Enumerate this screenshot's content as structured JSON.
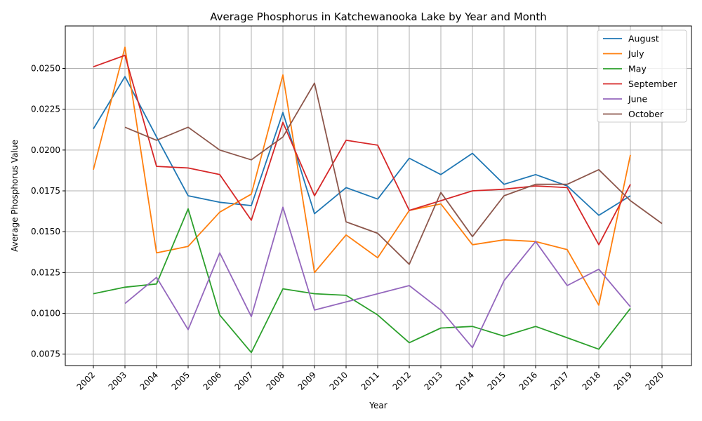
{
  "chart_data": {
    "type": "line",
    "title": "Average Phosphorus in Katchewanooka Lake by Year and Month",
    "xlabel": "Year",
    "ylabel": "Average Phosphorus Value",
    "x": [
      "2002",
      "2003",
      "2004",
      "2005",
      "2006",
      "2007",
      "2008",
      "2009",
      "2010",
      "2011",
      "2012",
      "2013",
      "2014",
      "2015",
      "2016",
      "2017",
      "2018",
      "2019",
      "2020"
    ],
    "ylim": [
      0.0068,
      0.0276
    ],
    "yticks": [
      "0.0075",
      "0.0100",
      "0.0125",
      "0.0150",
      "0.0175",
      "0.0200",
      "0.0225",
      "0.0250"
    ],
    "grid": true,
    "legend_position": "top-right",
    "series": [
      {
        "name": "August",
        "color": "#1f77b4",
        "values": [
          0.0213,
          0.0245,
          0.0208,
          0.0172,
          0.0168,
          0.0166,
          0.0223,
          0.0161,
          0.0177,
          0.017,
          0.0195,
          0.0185,
          0.0198,
          0.0179,
          0.0185,
          0.0178,
          0.016,
          0.0172,
          null
        ]
      },
      {
        "name": "July",
        "color": "#ff7f0e",
        "values": [
          0.0188,
          0.0263,
          0.0137,
          0.0141,
          0.0162,
          0.0173,
          0.0246,
          0.0125,
          0.0148,
          0.0134,
          0.0163,
          0.0167,
          0.0142,
          0.0145,
          0.0144,
          0.0139,
          0.0105,
          0.0197,
          null
        ]
      },
      {
        "name": "May",
        "color": "#2ca02c",
        "values": [
          0.0112,
          0.0116,
          0.0118,
          0.0164,
          0.0099,
          0.0076,
          0.0115,
          0.0112,
          0.0111,
          0.0099,
          0.0082,
          0.0091,
          0.0092,
          0.0086,
          0.0092,
          0.0085,
          0.0078,
          0.0103,
          null
        ]
      },
      {
        "name": "September",
        "color": "#d62728",
        "values": [
          0.0251,
          0.0258,
          0.019,
          0.0189,
          0.0185,
          0.0157,
          0.0217,
          0.0172,
          0.0206,
          0.0203,
          0.0163,
          0.0169,
          0.0175,
          0.0176,
          0.0178,
          0.0177,
          0.0142,
          0.0179,
          null
        ]
      },
      {
        "name": "June",
        "color": "#9467bd",
        "values": [
          null,
          0.0106,
          0.0122,
          0.009,
          0.0137,
          0.0098,
          0.0165,
          0.0102,
          0.0107,
          0.0112,
          0.0117,
          0.0102,
          0.0079,
          0.012,
          0.0144,
          0.0117,
          0.0127,
          0.0104,
          null
        ]
      },
      {
        "name": "October",
        "color": "#8c564b",
        "values": [
          null,
          0.0214,
          0.0206,
          0.0214,
          0.02,
          0.0194,
          0.0208,
          0.0241,
          0.0156,
          0.0149,
          0.013,
          0.0174,
          0.0147,
          0.0172,
          0.0179,
          0.0179,
          0.0188,
          0.0169,
          0.0155
        ]
      }
    ]
  }
}
